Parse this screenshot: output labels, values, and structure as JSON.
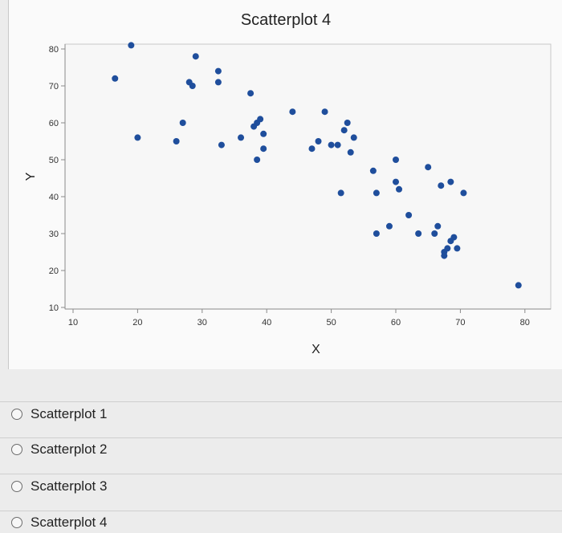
{
  "chart_data": {
    "type": "scatter",
    "title": "Scatterplot 4",
    "xlabel": "X",
    "ylabel": "Y",
    "xlim": [
      10,
      80
    ],
    "ylim": [
      10,
      80
    ],
    "xticks": [
      10,
      20,
      30,
      40,
      50,
      60,
      70,
      80
    ],
    "yticks": [
      10,
      20,
      30,
      40,
      50,
      60,
      70,
      80
    ],
    "grid": false,
    "marker_color": "#1f4e9c",
    "points": [
      [
        16.5,
        72
      ],
      [
        19,
        81
      ],
      [
        20,
        56
      ],
      [
        26,
        55
      ],
      [
        27,
        60
      ],
      [
        28,
        71
      ],
      [
        28.5,
        70
      ],
      [
        29,
        78
      ],
      [
        32.5,
        74
      ],
      [
        32.5,
        71
      ],
      [
        33,
        54
      ],
      [
        36,
        56
      ],
      [
        37.5,
        68
      ],
      [
        38,
        59
      ],
      [
        38.5,
        50
      ],
      [
        38.5,
        60
      ],
      [
        39,
        61
      ],
      [
        39.5,
        57
      ],
      [
        39.5,
        53
      ],
      [
        44,
        63
      ],
      [
        47,
        53
      ],
      [
        48,
        55
      ],
      [
        49,
        63
      ],
      [
        50,
        54
      ],
      [
        51,
        54
      ],
      [
        51.5,
        41
      ],
      [
        52,
        58
      ],
      [
        52.5,
        60
      ],
      [
        53,
        52
      ],
      [
        53.5,
        56
      ],
      [
        56.5,
        47
      ],
      [
        57,
        41
      ],
      [
        57,
        30
      ],
      [
        59,
        32
      ],
      [
        60,
        50
      ],
      [
        60,
        44
      ],
      [
        60.5,
        42
      ],
      [
        62,
        35
      ],
      [
        63.5,
        30
      ],
      [
        65,
        48
      ],
      [
        66,
        30
      ],
      [
        66.5,
        32
      ],
      [
        67,
        43
      ],
      [
        67.5,
        25
      ],
      [
        67.5,
        24
      ],
      [
        68,
        26
      ],
      [
        68.5,
        44
      ],
      [
        68.5,
        28
      ],
      [
        69,
        29
      ],
      [
        69.5,
        26
      ],
      [
        70.5,
        41
      ],
      [
        79,
        16
      ]
    ]
  },
  "options": [
    {
      "label": "Scatterplot 1"
    },
    {
      "label": "Scatterplot 2"
    },
    {
      "label": "Scatterplot 3"
    },
    {
      "label": "Scatterplot 4"
    }
  ]
}
